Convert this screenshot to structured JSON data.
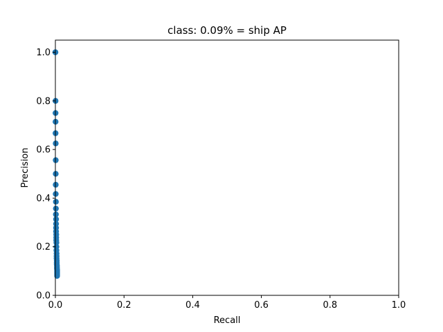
{
  "chart_data": {
    "type": "scatter",
    "title": "class: 0.09% = ship AP",
    "xlabel": "Recall",
    "ylabel": "Precision",
    "xlim": [
      0.0,
      1.0
    ],
    "ylim": [
      0.0,
      1.05
    ],
    "xticks": [
      "0.0",
      "0.2",
      "0.4",
      "0.6",
      "0.8",
      "1.0"
    ],
    "yticks": [
      "0.0",
      "0.2",
      "0.4",
      "0.6",
      "0.8",
      "1.0"
    ],
    "grid": false,
    "marker_color": "#1f77b4",
    "x": [
      0.0,
      0.0,
      0.0005,
      0.0005,
      0.0005,
      0.0005,
      0.001,
      0.001,
      0.001,
      0.001,
      0.001,
      0.0015,
      0.0015,
      0.0015,
      0.002,
      0.002,
      0.002,
      0.002,
      0.0025,
      0.0025,
      0.0025,
      0.003,
      0.003,
      0.003,
      0.0035,
      0.0035,
      0.0035,
      0.004,
      0.004,
      0.004,
      0.0045,
      0.0045,
      0.0045,
      0.005,
      0.005,
      0.005,
      0.005,
      0.005,
      0.005
    ],
    "y": [
      1.0,
      1.0,
      0.8,
      0.75,
      0.714,
      0.667,
      0.625,
      0.556,
      0.5,
      0.455,
      0.417,
      0.385,
      0.357,
      0.333,
      0.313,
      0.294,
      0.278,
      0.263,
      0.25,
      0.238,
      0.227,
      0.217,
      0.2,
      0.185,
      0.172,
      0.161,
      0.152,
      0.143,
      0.135,
      0.128,
      0.122,
      0.115,
      0.11,
      0.105,
      0.1,
      0.095,
      0.09,
      0.085,
      0.08
    ]
  }
}
